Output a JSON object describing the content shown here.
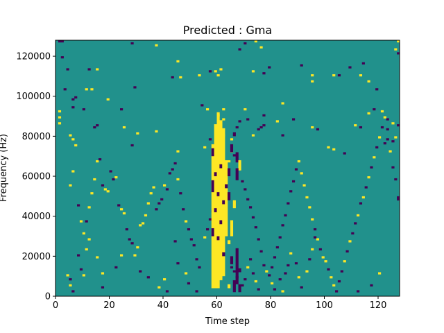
{
  "chart_data": {
    "type": "heatmap",
    "title": "Predicted : Gma",
    "xlabel": "Time step",
    "ylabel": "Frequency (Hz)",
    "xlim": [
      0,
      128
    ],
    "ylim": [
      0,
      128000
    ],
    "n_freq_bins": 128,
    "bin_height_hz": 1000,
    "x_ticks": [
      0,
      20,
      40,
      60,
      80,
      100,
      120
    ],
    "y_ticks": [
      0,
      20000,
      40000,
      60000,
      80000,
      100000,
      120000
    ],
    "x_tick_labels": [
      "0",
      "20",
      "40",
      "60",
      "80",
      "100",
      "120"
    ],
    "y_tick_labels": [
      "0",
      "20000",
      "40000",
      "60000",
      "80000",
      "100000",
      "120000"
    ],
    "colors": {
      "background": "#21918c",
      "high": "#fde725",
      "low": "#440154"
    },
    "legend": "none",
    "grid": false,
    "cells": [
      [
        1,
        127,
        "low"
      ],
      [
        2,
        127,
        "low"
      ],
      [
        2,
        119,
        "low"
      ],
      [
        4,
        113,
        "low"
      ],
      [
        3,
        103,
        "low"
      ],
      [
        6,
        98,
        "low"
      ],
      [
        7,
        99,
        "low"
      ],
      [
        6,
        94,
        "low"
      ],
      [
        10,
        93,
        "low"
      ],
      [
        12,
        113,
        "low"
      ],
      [
        11,
        103,
        "high"
      ],
      [
        15,
        113,
        "high"
      ],
      [
        13,
        103,
        "high"
      ],
      [
        19,
        98,
        "high"
      ],
      [
        24,
        93,
        "low"
      ],
      [
        29,
        104,
        "low"
      ],
      [
        28,
        126,
        "low"
      ],
      [
        37,
        125,
        "high"
      ],
      [
        43,
        109,
        "low"
      ],
      [
        45,
        117,
        "high"
      ],
      [
        46,
        109,
        "high"
      ],
      [
        54,
        95,
        "low"
      ],
      [
        56,
        93,
        "high"
      ],
      [
        53,
        110,
        "high"
      ],
      [
        57,
        112,
        "low"
      ],
      [
        59,
        112,
        "high"
      ],
      [
        60,
        110,
        "high"
      ],
      [
        61,
        113,
        "high"
      ],
      [
        1,
        92,
        "high"
      ],
      [
        1,
        89,
        "high"
      ],
      [
        1,
        86,
        "high"
      ],
      [
        5,
        80,
        "high"
      ],
      [
        6,
        78,
        "high"
      ],
      [
        14,
        84,
        "low"
      ],
      [
        15,
        85,
        "low"
      ],
      [
        25,
        84,
        "high"
      ],
      [
        30,
        81,
        "high"
      ],
      [
        28,
        75,
        "low"
      ],
      [
        37,
        82,
        "high"
      ],
      [
        45,
        72,
        "high"
      ],
      [
        55,
        74,
        "high"
      ],
      [
        57,
        78,
        "low"
      ],
      [
        62,
        88,
        "high"
      ],
      [
        60,
        90,
        "high"
      ],
      [
        62,
        93,
        "high"
      ],
      [
        62,
        80,
        "high"
      ],
      [
        65,
        78,
        "high"
      ],
      [
        67,
        84,
        "low"
      ],
      [
        68,
        87,
        "low"
      ],
      [
        70,
        93,
        "high"
      ],
      [
        71,
        88,
        "low"
      ],
      [
        73,
        80,
        "high"
      ],
      [
        75,
        83,
        "low"
      ],
      [
        76,
        84,
        "low"
      ],
      [
        77,
        85,
        "low"
      ],
      [
        77,
        90,
        "low"
      ],
      [
        82,
        87,
        "high"
      ],
      [
        84,
        96,
        "high"
      ],
      [
        84,
        80,
        "low"
      ],
      [
        88,
        88,
        "low"
      ],
      [
        95,
        84,
        "high"
      ],
      [
        97,
        83,
        "low"
      ],
      [
        101,
        74,
        "high"
      ],
      [
        103,
        73,
        "high"
      ],
      [
        107,
        71,
        "low"
      ],
      [
        111,
        85,
        "high"
      ],
      [
        113,
        84,
        "low"
      ],
      [
        116,
        91,
        "high"
      ],
      [
        118,
        93,
        "low"
      ],
      [
        121,
        92,
        "high"
      ],
      [
        123,
        88,
        "low"
      ],
      [
        125,
        86,
        "high"
      ],
      [
        126,
        79,
        "high"
      ],
      [
        125,
        77,
        "low"
      ],
      [
        127,
        85,
        "low"
      ],
      [
        123,
        78,
        "low"
      ],
      [
        122,
        76,
        "low"
      ],
      [
        68,
        123,
        "low"
      ],
      [
        70,
        126,
        "low"
      ],
      [
        73,
        112,
        "high"
      ],
      [
        74,
        127,
        "high"
      ],
      [
        76,
        124,
        "high"
      ],
      [
        77,
        111,
        "low"
      ],
      [
        79,
        114,
        "low"
      ],
      [
        91,
        115,
        "low"
      ],
      [
        95,
        110,
        "high"
      ],
      [
        95,
        107,
        "high"
      ],
      [
        103,
        110,
        "high"
      ],
      [
        105,
        110,
        "low"
      ],
      [
        109,
        114,
        "low"
      ],
      [
        114,
        116,
        "low"
      ],
      [
        113,
        110,
        "high"
      ],
      [
        116,
        107,
        "high"
      ],
      [
        119,
        103,
        "low"
      ],
      [
        126,
        123,
        "high"
      ],
      [
        127,
        127,
        "high"
      ],
      [
        127,
        121,
        "low"
      ],
      [
        7,
        75,
        "high"
      ],
      [
        6,
        62,
        "high"
      ],
      [
        5,
        55,
        "high"
      ],
      [
        8,
        45,
        "low"
      ],
      [
        9,
        37,
        "high"
      ],
      [
        10,
        31,
        "high"
      ],
      [
        12,
        28,
        "high"
      ],
      [
        11,
        23,
        "high"
      ],
      [
        8,
        20,
        "low"
      ],
      [
        9,
        13,
        "low"
      ],
      [
        10,
        10,
        "high"
      ],
      [
        11,
        37,
        "low"
      ],
      [
        12,
        44,
        "high"
      ],
      [
        13,
        51,
        "high"
      ],
      [
        14,
        58,
        "high"
      ],
      [
        15,
        67,
        "high"
      ],
      [
        16,
        68,
        "low"
      ],
      [
        17,
        55,
        "low"
      ],
      [
        18,
        53,
        "high"
      ],
      [
        19,
        52,
        "high"
      ],
      [
        20,
        62,
        "low"
      ],
      [
        21,
        58,
        "low"
      ],
      [
        22,
        59,
        "high"
      ],
      [
        23,
        45,
        "low"
      ],
      [
        24,
        43,
        "high"
      ],
      [
        25,
        41,
        "high"
      ],
      [
        26,
        33,
        "low"
      ],
      [
        27,
        28,
        "low"
      ],
      [
        28,
        26,
        "low"
      ],
      [
        29,
        20,
        "high"
      ],
      [
        30,
        24,
        "high"
      ],
      [
        31,
        35,
        "high"
      ],
      [
        32,
        36,
        "high"
      ],
      [
        33,
        40,
        "high"
      ],
      [
        34,
        46,
        "high"
      ],
      [
        35,
        51,
        "high"
      ],
      [
        36,
        54,
        "high"
      ],
      [
        37,
        43,
        "low"
      ],
      [
        38,
        46,
        "low"
      ],
      [
        39,
        48,
        "low"
      ],
      [
        40,
        55,
        "high"
      ],
      [
        41,
        53,
        "low"
      ],
      [
        42,
        61,
        "low"
      ],
      [
        43,
        63,
        "low"
      ],
      [
        44,
        66,
        "low"
      ],
      [
        45,
        58,
        "high"
      ],
      [
        46,
        51,
        "low"
      ],
      [
        47,
        43,
        "low"
      ],
      [
        48,
        37,
        "high"
      ],
      [
        49,
        33,
        "low"
      ],
      [
        50,
        28,
        "low"
      ],
      [
        51,
        25,
        "low"
      ],
      [
        52,
        18,
        "low"
      ],
      [
        53,
        14,
        "low"
      ],
      [
        55,
        29,
        "high"
      ],
      [
        56,
        33,
        "low"
      ],
      [
        57,
        38,
        "low"
      ],
      [
        58,
        42,
        "low"
      ],
      [
        59,
        48,
        "high"
      ],
      [
        60,
        51,
        "high"
      ],
      [
        61,
        55,
        "high"
      ],
      [
        62,
        58,
        "high"
      ],
      [
        63,
        62,
        "high"
      ],
      [
        64,
        67,
        "high"
      ],
      [
        65,
        72,
        "high"
      ],
      [
        66,
        70,
        "low"
      ],
      [
        67,
        67,
        "low"
      ],
      [
        68,
        63,
        "high"
      ],
      [
        69,
        57,
        "low"
      ],
      [
        70,
        53,
        "low"
      ],
      [
        71,
        48,
        "low"
      ],
      [
        72,
        44,
        "low"
      ],
      [
        73,
        39,
        "low"
      ],
      [
        74,
        34,
        "low"
      ],
      [
        75,
        28,
        "low"
      ],
      [
        76,
        22,
        "low"
      ],
      [
        77,
        15,
        "low"
      ],
      [
        78,
        12,
        "high"
      ],
      [
        79,
        10,
        "low"
      ],
      [
        80,
        14,
        "low"
      ],
      [
        81,
        19,
        "low"
      ],
      [
        82,
        24,
        "low"
      ],
      [
        83,
        29,
        "low"
      ],
      [
        84,
        35,
        "low"
      ],
      [
        85,
        40,
        "low"
      ],
      [
        86,
        46,
        "low"
      ],
      [
        87,
        52,
        "low"
      ],
      [
        88,
        57,
        "low"
      ],
      [
        89,
        63,
        "low"
      ],
      [
        90,
        67,
        "high"
      ],
      [
        91,
        61,
        "high"
      ],
      [
        92,
        55,
        "high"
      ],
      [
        93,
        49,
        "high"
      ],
      [
        94,
        44,
        "high"
      ],
      [
        95,
        38,
        "high"
      ],
      [
        96,
        33,
        "low"
      ],
      [
        97,
        28,
        "high"
      ],
      [
        98,
        23,
        "low"
      ],
      [
        99,
        19,
        "high"
      ],
      [
        100,
        17,
        "high"
      ],
      [
        101,
        13,
        "low"
      ],
      [
        102,
        9,
        "high"
      ],
      [
        103,
        5,
        "high"
      ],
      [
        104,
        2,
        "low"
      ],
      [
        105,
        7,
        "low"
      ],
      [
        106,
        12,
        "low"
      ],
      [
        107,
        17,
        "high"
      ],
      [
        108,
        22,
        "low"
      ],
      [
        109,
        27,
        "high"
      ],
      [
        110,
        31,
        "low"
      ],
      [
        111,
        36,
        "low"
      ],
      [
        112,
        40,
        "high"
      ],
      [
        113,
        46,
        "low"
      ],
      [
        114,
        49,
        "high"
      ],
      [
        115,
        54,
        "low"
      ],
      [
        116,
        59,
        "high"
      ],
      [
        117,
        64,
        "low"
      ],
      [
        118,
        69,
        "high"
      ],
      [
        119,
        74,
        "low"
      ],
      [
        120,
        79,
        "high"
      ],
      [
        121,
        84,
        "low"
      ],
      [
        122,
        89,
        "high"
      ],
      [
        123,
        83,
        "low"
      ],
      [
        124,
        72,
        "high"
      ],
      [
        125,
        64,
        "low"
      ],
      [
        126,
        58,
        "low"
      ],
      [
        127,
        49,
        "low"
      ],
      [
        127,
        48,
        "low"
      ],
      [
        120,
        11,
        "high"
      ],
      [
        117,
        5,
        "low"
      ],
      [
        112,
        2,
        "low"
      ],
      [
        4,
        10,
        "high"
      ],
      [
        5,
        8,
        "low"
      ],
      [
        5,
        5,
        "high"
      ],
      [
        6,
        2,
        "low"
      ],
      [
        15,
        19,
        "high"
      ],
      [
        17,
        11,
        "high"
      ],
      [
        17,
        4,
        "low"
      ],
      [
        22,
        14,
        "low"
      ],
      [
        24,
        20,
        "high"
      ],
      [
        31,
        12,
        "low"
      ],
      [
        34,
        9,
        "low"
      ],
      [
        38,
        4,
        "high"
      ],
      [
        40,
        8,
        "high"
      ],
      [
        41,
        2,
        "low"
      ],
      [
        44,
        27,
        "low"
      ],
      [
        45,
        16,
        "low"
      ],
      [
        48,
        11,
        "high"
      ],
      [
        49,
        6,
        "low"
      ],
      [
        52,
        2,
        "low"
      ],
      [
        65,
        14,
        "low"
      ],
      [
        66,
        12,
        "low"
      ],
      [
        67,
        9,
        "low"
      ],
      [
        69,
        5,
        "low"
      ],
      [
        70,
        8,
        "low"
      ],
      [
        71,
        14,
        "high"
      ],
      [
        72,
        18,
        "low"
      ],
      [
        73,
        11,
        "low"
      ],
      [
        74,
        7,
        "high"
      ],
      [
        75,
        3,
        "low"
      ],
      [
        80,
        6,
        "high"
      ],
      [
        81,
        3,
        "low"
      ],
      [
        83,
        8,
        "low"
      ],
      [
        84,
        2,
        "high"
      ],
      [
        85,
        11,
        "low"
      ],
      [
        86,
        15,
        "low"
      ],
      [
        87,
        21,
        "high"
      ],
      [
        89,
        16,
        "low"
      ],
      [
        90,
        9,
        "high"
      ],
      [
        91,
        4,
        "low"
      ],
      [
        93,
        12,
        "high"
      ],
      [
        94,
        18,
        "low"
      ],
      [
        95,
        23,
        "high"
      ],
      [
        96,
        29,
        "low"
      ]
    ],
    "columns": [
      {
        "x": 58,
        "runs": [
          [
            4,
            76,
            "high"
          ],
          [
            30,
            34,
            "low"
          ],
          [
            52,
            58,
            "low"
          ],
          [
            70,
            74,
            "low"
          ]
        ]
      },
      {
        "x": 59,
        "runs": [
          [
            4,
            86,
            "high"
          ],
          [
            42,
            44,
            "low"
          ],
          [
            60,
            62,
            "low"
          ]
        ]
      },
      {
        "x": 60,
        "runs": [
          [
            4,
            92,
            "high"
          ],
          [
            28,
            30,
            "low"
          ],
          [
            50,
            52,
            "low"
          ]
        ]
      },
      {
        "x": 61,
        "runs": [
          [
            8,
            88,
            "high"
          ],
          [
            36,
            38,
            "low"
          ],
          [
            64,
            66,
            "low"
          ]
        ]
      },
      {
        "x": 62,
        "runs": [
          [
            10,
            84,
            "high"
          ],
          [
            20,
            22,
            "low"
          ],
          [
            46,
            48,
            "low"
          ]
        ]
      },
      {
        "x": 63,
        "runs": [
          [
            30,
            68,
            "high"
          ],
          [
            54,
            56,
            "low"
          ]
        ]
      },
      {
        "x": 64,
        "runs": [
          [
            4,
            6,
            "high"
          ],
          [
            26,
            28,
            "high"
          ],
          [
            48,
            52,
            "low"
          ],
          [
            60,
            64,
            "low"
          ]
        ]
      },
      {
        "x": 65,
        "runs": [
          [
            16,
            20,
            "low"
          ],
          [
            30,
            38,
            "high"
          ],
          [
            72,
            76,
            "low"
          ]
        ]
      },
      {
        "x": 66,
        "runs": [
          [
            2,
            8,
            "low"
          ],
          [
            44,
            48,
            "high"
          ],
          [
            80,
            82,
            "low"
          ]
        ]
      },
      {
        "x": 67,
        "runs": [
          [
            6,
            24,
            "low"
          ],
          [
            58,
            64,
            "low"
          ],
          [
            68,
            72,
            "low"
          ]
        ]
      },
      {
        "x": 68,
        "runs": [
          [
            2,
            6,
            "low"
          ],
          [
            12,
            14,
            "low"
          ],
          [
            64,
            68,
            "high"
          ]
        ]
      }
    ]
  }
}
